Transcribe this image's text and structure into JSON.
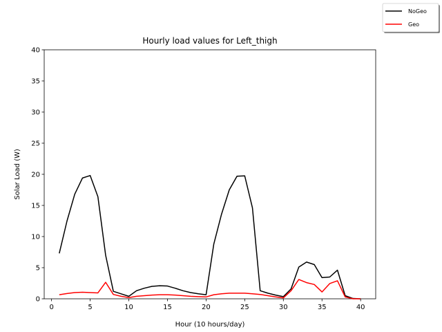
{
  "chart_data": {
    "type": "line",
    "title": "Hourly load values for Left_thigh",
    "xlabel": "Hour (10 hours/day)",
    "ylabel": "Solar Load (W)",
    "xlim": [
      -0.95,
      41.95
    ],
    "ylim": [
      0,
      40
    ],
    "xticks": [
      0,
      5,
      10,
      15,
      20,
      25,
      30,
      35,
      40
    ],
    "yticks": [
      0,
      5,
      10,
      15,
      20,
      25,
      30,
      35,
      40
    ],
    "legend_position": "top-right",
    "grid": false,
    "x": [
      1,
      2,
      3,
      4,
      5,
      6,
      7,
      8,
      9,
      10,
      11,
      12,
      13,
      14,
      15,
      16,
      17,
      18,
      19,
      20,
      21,
      22,
      23,
      24,
      25,
      26,
      27,
      28,
      29,
      30,
      31,
      32,
      33,
      34,
      35,
      36,
      37,
      38,
      39,
      40
    ],
    "series": [
      {
        "name": "NoGeo",
        "color": "#000000",
        "values": [
          7.3,
          12.5,
          16.8,
          19.4,
          19.8,
          16.4,
          7.0,
          1.2,
          0.8,
          0.4,
          1.3,
          1.7,
          2.0,
          2.1,
          2.05,
          1.7,
          1.3,
          1.0,
          0.8,
          0.65,
          8.8,
          13.6,
          17.5,
          19.7,
          19.75,
          14.6,
          1.3,
          0.9,
          0.6,
          0.35,
          1.6,
          5.1,
          5.9,
          5.5,
          3.4,
          3.5,
          4.6,
          0.5,
          0.05,
          0.0
        ]
      },
      {
        "name": "Geo",
        "color": "#ff0000",
        "values": [
          0.65,
          0.85,
          1.0,
          1.05,
          1.0,
          0.95,
          2.65,
          0.7,
          0.4,
          0.2,
          0.4,
          0.5,
          0.6,
          0.65,
          0.65,
          0.6,
          0.5,
          0.4,
          0.35,
          0.3,
          0.65,
          0.8,
          0.9,
          0.9,
          0.9,
          0.8,
          0.7,
          0.5,
          0.3,
          0.15,
          1.3,
          3.1,
          2.6,
          2.3,
          1.1,
          2.45,
          2.9,
          0.3,
          0.0,
          0.0
        ]
      }
    ]
  }
}
